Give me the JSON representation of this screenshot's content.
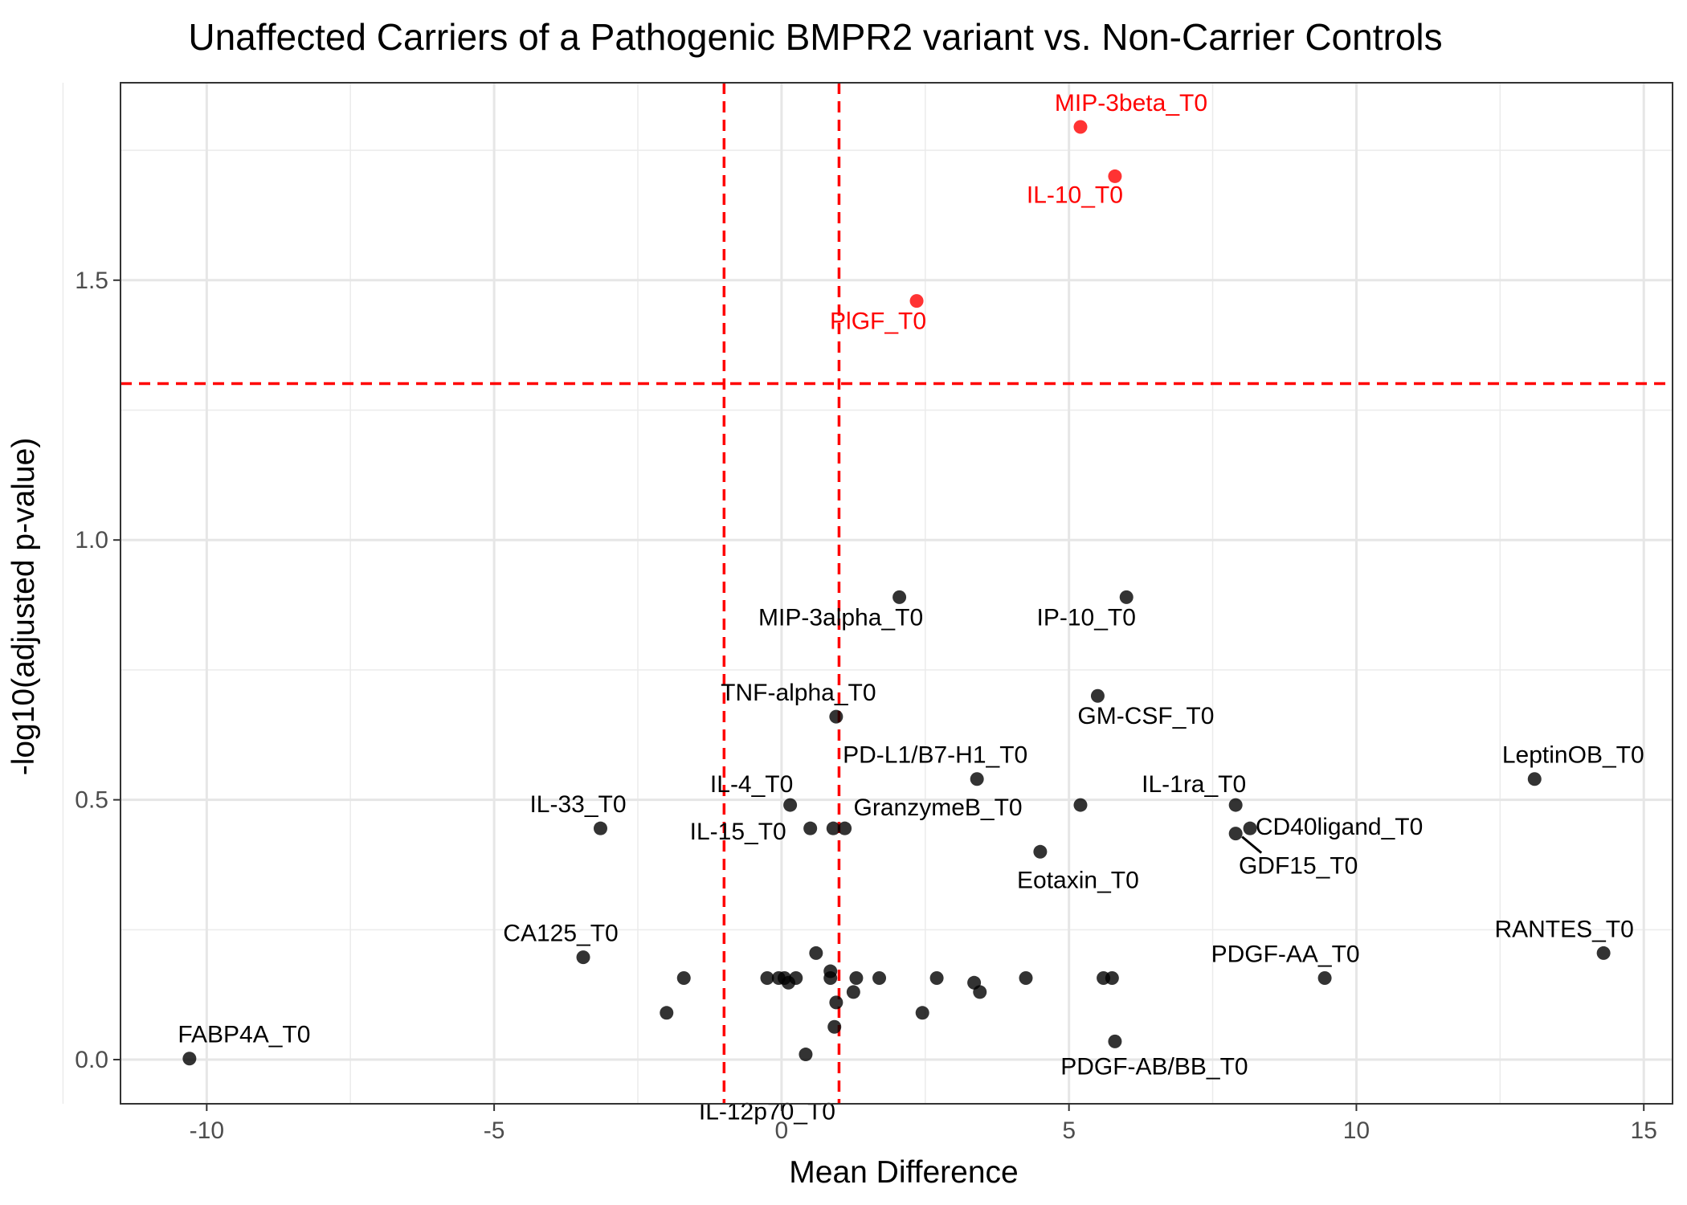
{
  "chart_data": {
    "type": "scatter",
    "title": "Unaffected Carriers of a Pathogenic BMPR2 variant vs. Non-Carrier Controls",
    "xlabel": "Mean Difference",
    "ylabel": "-log10(adjusted p-value)",
    "xlim": [
      -11.5,
      15.5
    ],
    "ylim": [
      -0.085,
      1.88
    ],
    "x_ticks": [
      -10,
      -5,
      0,
      5,
      10,
      15
    ],
    "x_tick_labels": [
      "-10",
      "-5",
      "0",
      "5",
      "10",
      "15"
    ],
    "y_ticks": [
      0.0,
      0.5,
      1.0,
      1.5
    ],
    "y_tick_labels": [
      "0.0",
      "0.5",
      "1.0",
      "1.5"
    ],
    "grid": true,
    "thresholds": {
      "x": [
        -1,
        1
      ],
      "y": 1.301,
      "color": "#ff0000"
    },
    "colors": {
      "significant": "#ff0000",
      "not_significant": "#000000"
    },
    "points": [
      {
        "x": 5.2,
        "y": 1.795,
        "label": "MIP-3beta_T0",
        "significant": true
      },
      {
        "x": 5.8,
        "y": 1.7,
        "label": "IL-10_T0",
        "significant": true
      },
      {
        "x": 2.35,
        "y": 1.46,
        "label": "PlGF_T0",
        "significant": true
      },
      {
        "x": 2.05,
        "y": 0.89,
        "label": "MIP-3alpha_T0",
        "significant": false
      },
      {
        "x": 6.0,
        "y": 0.89,
        "label": "IP-10_T0",
        "significant": false
      },
      {
        "x": 5.5,
        "y": 0.7,
        "label": "GM-CSF_T0",
        "significant": false
      },
      {
        "x": 0.95,
        "y": 0.66,
        "label": "TNF-alpha_T0",
        "significant": false
      },
      {
        "x": 3.4,
        "y": 0.54,
        "label": "PD-L1/B7-H1_T0",
        "significant": false
      },
      {
        "x": 13.1,
        "y": 0.54,
        "label": "LeptinOB_T0",
        "significant": false
      },
      {
        "x": 0.15,
        "y": 0.49,
        "label": "IL-4_T0",
        "significant": false
      },
      {
        "x": 5.2,
        "y": 0.49,
        "label": "",
        "significant": false
      },
      {
        "x": 7.9,
        "y": 0.49,
        "label": "IL-1ra_T0",
        "significant": false
      },
      {
        "x": -3.15,
        "y": 0.445,
        "label": "IL-33_T0",
        "significant": false
      },
      {
        "x": 0.5,
        "y": 0.445,
        "label": "IL-15_T0",
        "significant": false
      },
      {
        "x": 0.9,
        "y": 0.445,
        "label": "",
        "significant": false
      },
      {
        "x": 1.1,
        "y": 0.445,
        "label": "GranzymeB_T0",
        "significant": false
      },
      {
        "x": 7.9,
        "y": 0.435,
        "label": "GDF15_T0",
        "significant": false
      },
      {
        "x": 8.15,
        "y": 0.445,
        "label": "CD40ligand_T0",
        "significant": false
      },
      {
        "x": 4.5,
        "y": 0.4,
        "label": "Eotaxin_T0",
        "significant": false
      },
      {
        "x": -3.45,
        "y": 0.197,
        "label": "CA125_T0",
        "significant": false
      },
      {
        "x": 14.3,
        "y": 0.205,
        "label": "RANTES_T0",
        "significant": false
      },
      {
        "x": 9.45,
        "y": 0.157,
        "label": "PDGF-AA_T0",
        "significant": false
      },
      {
        "x": -10.3,
        "y": 0.002,
        "label": "FABP4A_T0",
        "significant": false
      },
      {
        "x": 5.8,
        "y": 0.035,
        "label": "PDGF-AB/BB_T0",
        "significant": false
      },
      {
        "x": 0.42,
        "y": 0.01,
        "label": "IL-12p70_T0",
        "significant": false
      },
      {
        "x": -1.7,
        "y": 0.157,
        "label": "",
        "significant": false
      },
      {
        "x": -2.0,
        "y": 0.09,
        "label": "",
        "significant": false
      },
      {
        "x": -0.25,
        "y": 0.157,
        "label": "",
        "significant": false
      },
      {
        "x": -0.05,
        "y": 0.157,
        "label": "",
        "significant": false
      },
      {
        "x": 0.05,
        "y": 0.157,
        "label": "",
        "significant": false
      },
      {
        "x": 0.12,
        "y": 0.148,
        "label": "",
        "significant": false
      },
      {
        "x": 0.25,
        "y": 0.157,
        "label": "",
        "significant": false
      },
      {
        "x": 0.6,
        "y": 0.205,
        "label": "",
        "significant": false
      },
      {
        "x": 0.85,
        "y": 0.17,
        "label": "",
        "significant": false
      },
      {
        "x": 0.85,
        "y": 0.157,
        "label": "",
        "significant": false
      },
      {
        "x": 0.95,
        "y": 0.11,
        "label": "",
        "significant": false
      },
      {
        "x": 0.92,
        "y": 0.063,
        "label": "",
        "significant": false
      },
      {
        "x": 1.3,
        "y": 0.157,
        "label": "",
        "significant": false
      },
      {
        "x": 1.25,
        "y": 0.13,
        "label": "",
        "significant": false
      },
      {
        "x": 1.7,
        "y": 0.157,
        "label": "",
        "significant": false
      },
      {
        "x": 2.45,
        "y": 0.09,
        "label": "",
        "significant": false
      },
      {
        "x": 2.7,
        "y": 0.157,
        "label": "",
        "significant": false
      },
      {
        "x": 3.35,
        "y": 0.148,
        "label": "",
        "significant": false
      },
      {
        "x": 3.45,
        "y": 0.13,
        "label": "",
        "significant": false
      },
      {
        "x": 4.25,
        "y": 0.157,
        "label": "",
        "significant": false
      },
      {
        "x": 5.6,
        "y": 0.157,
        "label": "",
        "significant": false
      },
      {
        "x": 5.75,
        "y": 0.157,
        "label": "",
        "significant": false
      }
    ]
  }
}
